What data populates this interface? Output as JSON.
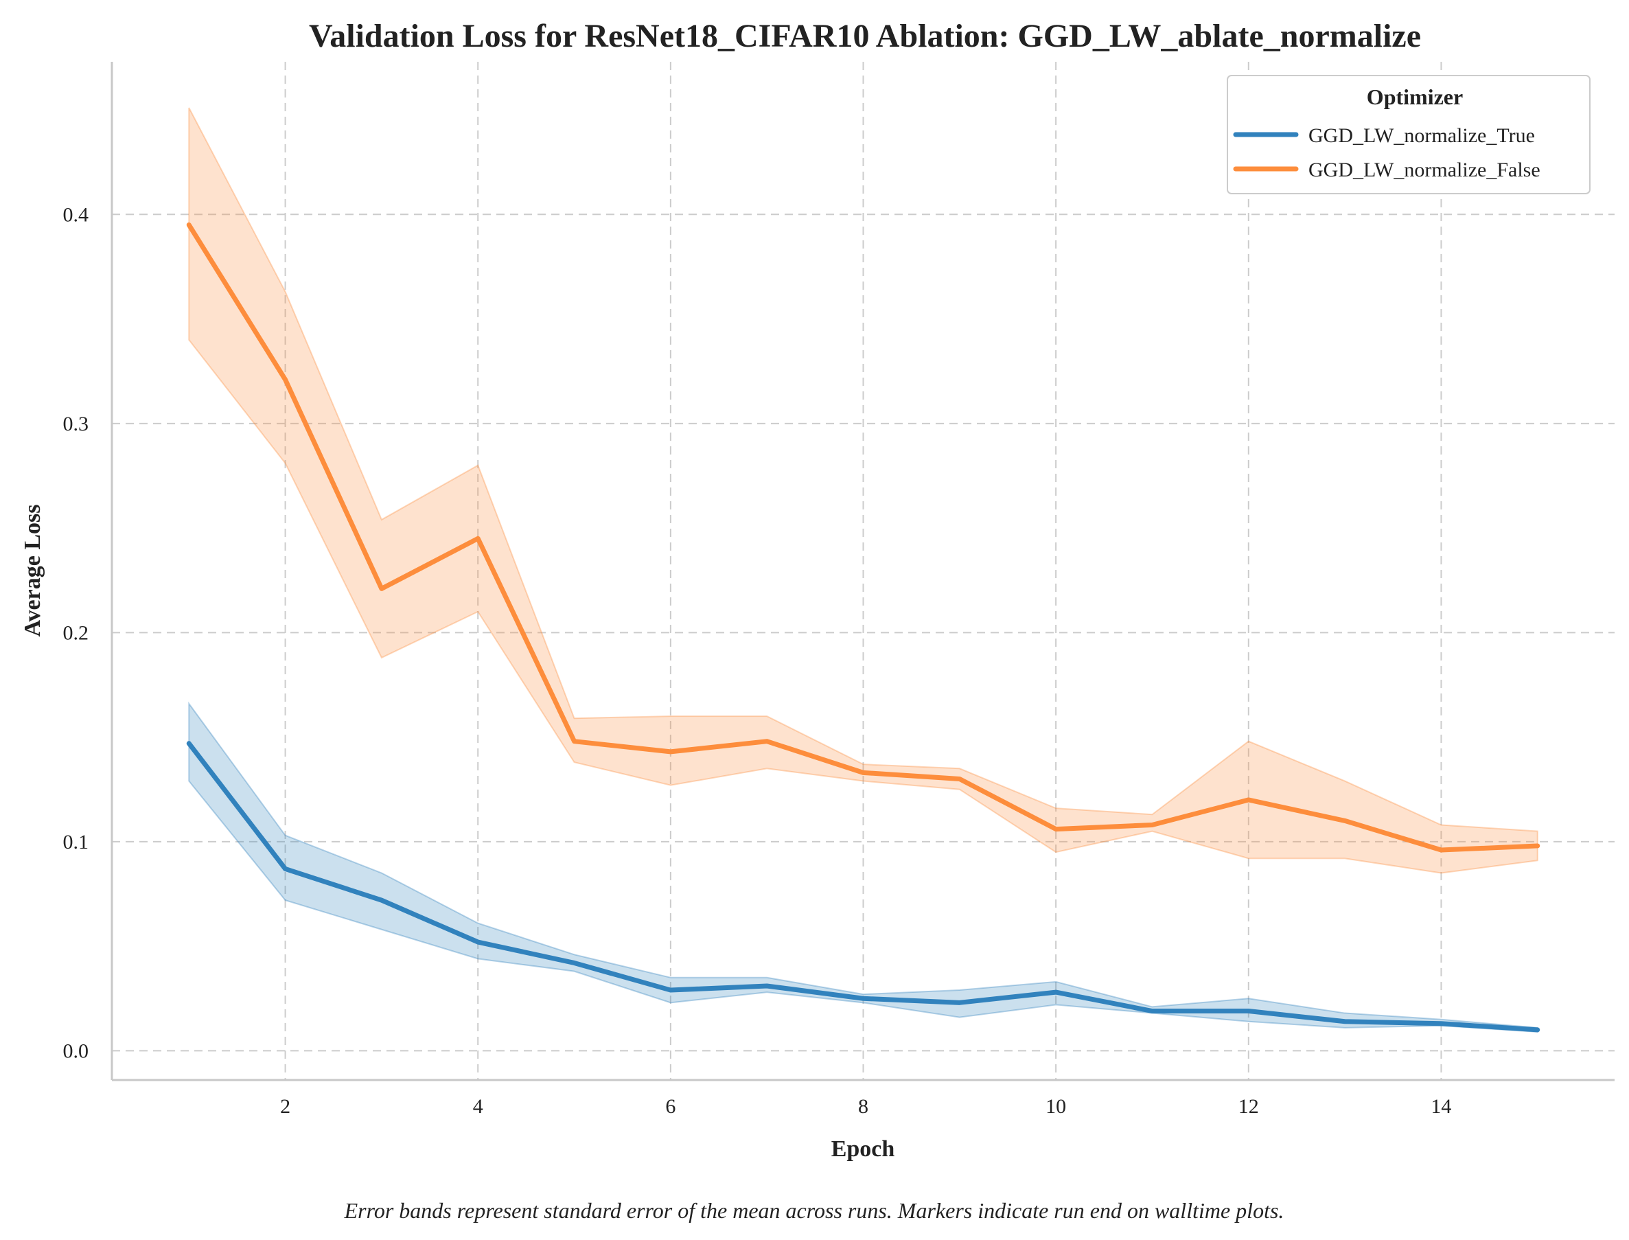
{
  "chart_data": {
    "type": "line",
    "title": "Validation Loss for ResNet18_CIFAR10 Ablation: GGD_LW_ablate_normalize",
    "xlabel": "Epoch",
    "ylabel": "Average Loss",
    "xlim": [
      0.2,
      15.8
    ],
    "ylim": [
      -0.014,
      0.473
    ],
    "xticks": [
      2,
      4,
      6,
      8,
      10,
      12,
      14
    ],
    "yticks": [
      0.0,
      0.1,
      0.2,
      0.3,
      0.4
    ],
    "ytick_labels": [
      "0.0",
      "0.1",
      "0.2",
      "0.3",
      "0.4"
    ],
    "grid": true,
    "legend": {
      "title": "Optimizer",
      "placement": "top-right"
    },
    "x": [
      1,
      2,
      3,
      4,
      5,
      6,
      7,
      8,
      9,
      10,
      11,
      12,
      13,
      14,
      15
    ],
    "series": [
      {
        "name": "GGD_LW_normalize_True",
        "color": "#3182bd",
        "values": [
          0.147,
          0.087,
          0.072,
          0.052,
          0.042,
          0.029,
          0.031,
          0.025,
          0.023,
          0.028,
          0.019,
          0.019,
          0.014,
          0.013,
          0.01
        ],
        "lower": [
          0.129,
          0.072,
          0.058,
          0.044,
          0.038,
          0.023,
          0.028,
          0.023,
          0.016,
          0.022,
          0.018,
          0.014,
          0.011,
          0.012,
          0.009
        ],
        "upper": [
          0.166,
          0.103,
          0.085,
          0.061,
          0.046,
          0.035,
          0.035,
          0.027,
          0.029,
          0.033,
          0.021,
          0.025,
          0.018,
          0.015,
          0.011
        ]
      },
      {
        "name": "GGD_LW_normalize_False",
        "color": "#fd8d3c",
        "values": [
          0.395,
          0.321,
          0.221,
          0.245,
          0.148,
          0.143,
          0.148,
          0.133,
          0.13,
          0.106,
          0.108,
          0.12,
          0.11,
          0.096,
          0.098
        ],
        "lower": [
          0.34,
          0.281,
          0.188,
          0.21,
          0.138,
          0.127,
          0.135,
          0.129,
          0.125,
          0.095,
          0.105,
          0.092,
          0.092,
          0.085,
          0.091
        ],
        "upper": [
          0.451,
          0.363,
          0.254,
          0.28,
          0.159,
          0.16,
          0.16,
          0.137,
          0.135,
          0.116,
          0.113,
          0.148,
          0.129,
          0.108,
          0.105
        ]
      }
    ],
    "caption": "Error bands represent standard error of the mean across runs. Markers indicate run end on walltime plots."
  }
}
